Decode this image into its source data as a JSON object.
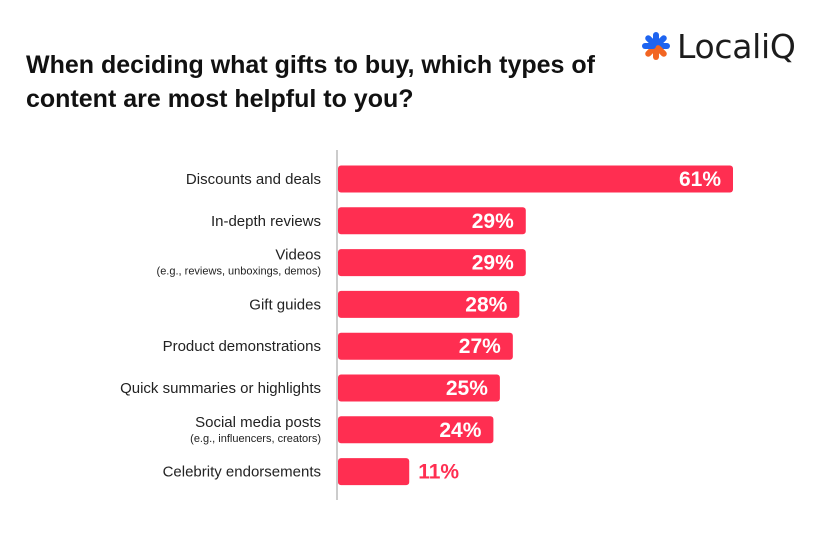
{
  "brand": {
    "name": "LocaliQ",
    "icon_colors": [
      "#1e64f0",
      "#f26522"
    ]
  },
  "chart_data": {
    "type": "bar",
    "orientation": "horizontal",
    "title": "When deciding what gifts to buy, which types of content are most helpful to you?",
    "categories": [
      {
        "label": "Discounts and deals",
        "sublabel": ""
      },
      {
        "label": "In-depth reviews",
        "sublabel": ""
      },
      {
        "label": "Videos",
        "sublabel": "(e.g., reviews, unboxings, demos)"
      },
      {
        "label": "Gift guides",
        "sublabel": ""
      },
      {
        "label": "Product demonstrations",
        "sublabel": ""
      },
      {
        "label": "Quick summaries or highlights",
        "sublabel": ""
      },
      {
        "label": "Social media posts",
        "sublabel": "(e.g., influencers, creators)"
      },
      {
        "label": "Celebrity endorsements",
        "sublabel": ""
      }
    ],
    "values": [
      61,
      29,
      29,
      28,
      27,
      25,
      24,
      11
    ],
    "value_labels": [
      "61%",
      "29%",
      "29%",
      "28%",
      "27%",
      "25%",
      "24%",
      "11%"
    ],
    "xlim": [
      0,
      61
    ],
    "grid": false,
    "bar_color": "#ff2e51",
    "label_inside_color": "#ffffff",
    "label_outside_color": "#ff2e51"
  }
}
